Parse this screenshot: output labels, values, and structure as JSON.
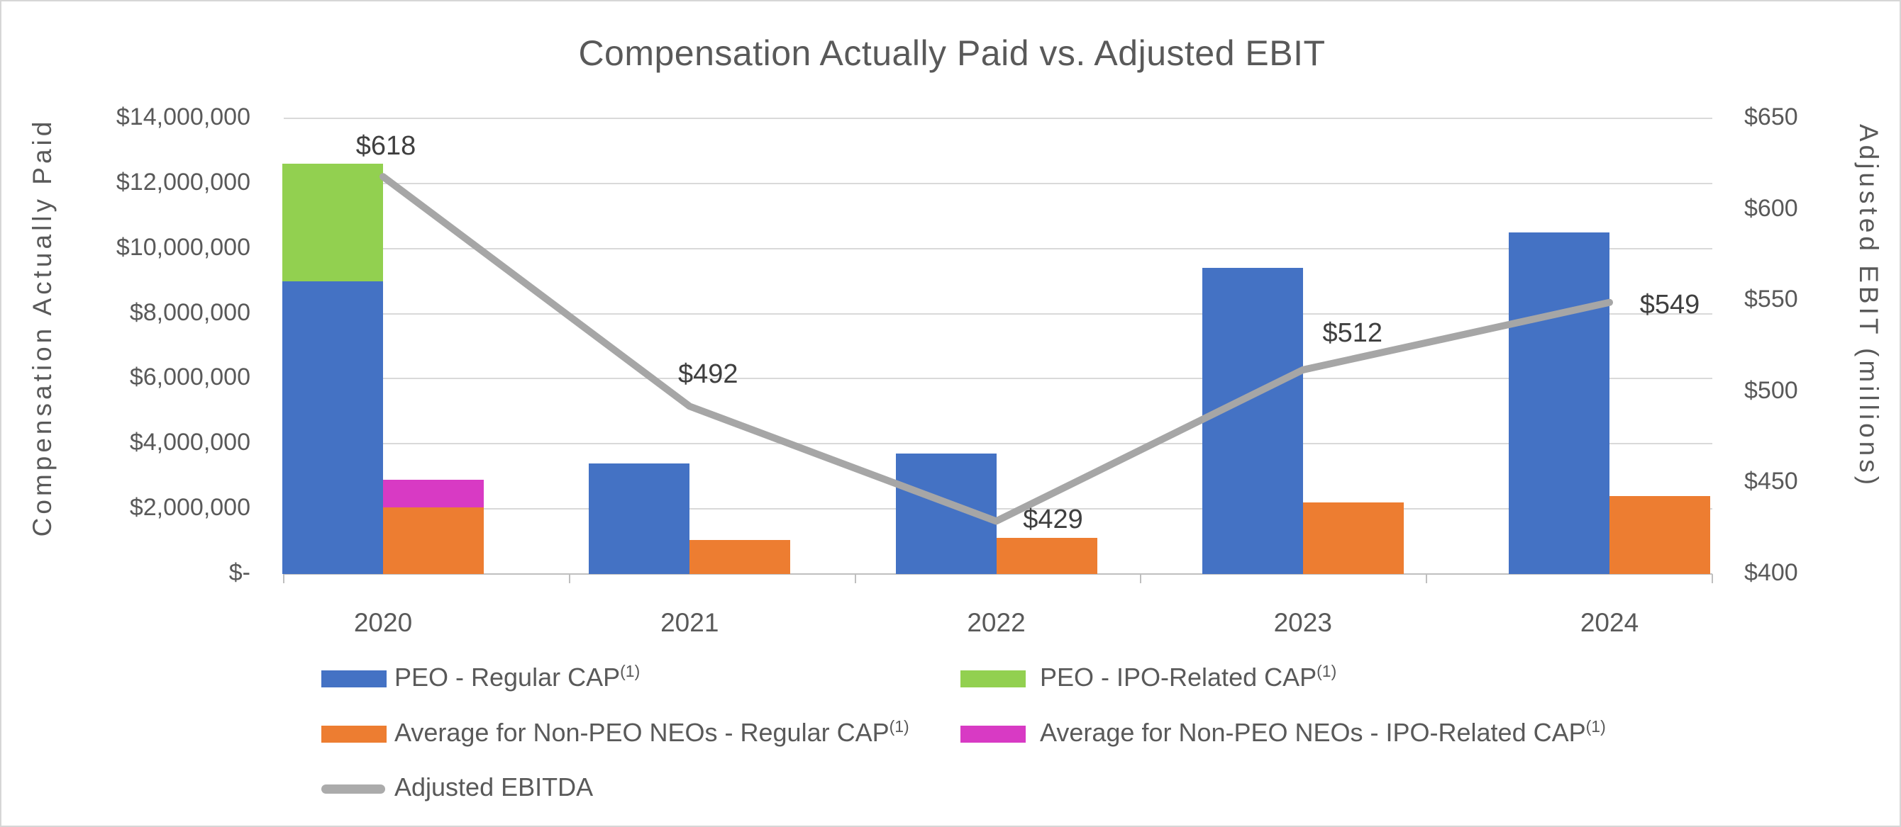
{
  "title": "Compensation Actually Paid vs. Adjusted EBIT",
  "chart_data": {
    "type": "bar",
    "subtype": "clustered-stacked bars with secondary-axis line",
    "categories": [
      "2020",
      "2021",
      "2022",
      "2023",
      "2024"
    ],
    "series": [
      {
        "name": "PEO - Regular CAP",
        "sup": "(1)",
        "kind": "bar",
        "cluster": "peo",
        "stack_order": 0,
        "color": "#4472C4",
        "values": [
          9000000,
          3400000,
          3700000,
          9400000,
          10500000
        ]
      },
      {
        "name": "PEO - IPO-Related CAP",
        "sup": "(1)",
        "kind": "bar",
        "cluster": "peo",
        "stack_order": 1,
        "color": "#92D050",
        "values": [
          3600000,
          0,
          0,
          0,
          0
        ]
      },
      {
        "name": "Average for Non-PEO NEOs - Regular CAP",
        "sup": "(1)",
        "kind": "bar",
        "cluster": "neo",
        "stack_order": 0,
        "color": "#ED7D31",
        "values": [
          2050000,
          1050000,
          1100000,
          2200000,
          2400000
        ]
      },
      {
        "name": "Average for Non-PEO NEOs - IPO-Related CAP",
        "sup": "(1)",
        "kind": "bar",
        "cluster": "neo",
        "stack_order": 1,
        "color": "#D83AC4",
        "values": [
          850000,
          0,
          0,
          0,
          0
        ]
      },
      {
        "name": "Adjusted EBITDA",
        "sup": "",
        "kind": "line",
        "color": "#A6A6A6",
        "values": [
          618,
          492,
          429,
          512,
          549
        ],
        "point_labels": [
          "$618",
          "$492",
          "$429",
          "$512",
          "$549"
        ]
      }
    ],
    "left_axis": {
      "title": "Compensation Actually Paid",
      "min": 0,
      "max": 14000000,
      "tick_step": 2000000,
      "ticks": [
        "$14,000,000",
        "$12,000,000",
        "$10,000,000",
        "$8,000,000",
        "$6,000,000",
        "$4,000,000",
        "$2,000,000",
        "$-"
      ]
    },
    "right_axis": {
      "title": "Adjusted EBIT (millions)",
      "min": 400,
      "max": 650,
      "tick_step": 50,
      "ticks": [
        "$650",
        "$600",
        "$550",
        "$500",
        "$450",
        "$400"
      ]
    },
    "grid": true,
    "legend_position": "bottom, two columns, three rows"
  },
  "colors": {
    "peo_regular": "#4472C4",
    "peo_ipo": "#92D050",
    "neo_regular": "#ED7D31",
    "neo_ipo": "#D83AC4",
    "ebitda_line": "#A6A6A6",
    "gridline": "#D9D9D9",
    "axis_line": "#BFBFBF",
    "text": "#595959",
    "data_label_text": "#3F3F3F"
  }
}
